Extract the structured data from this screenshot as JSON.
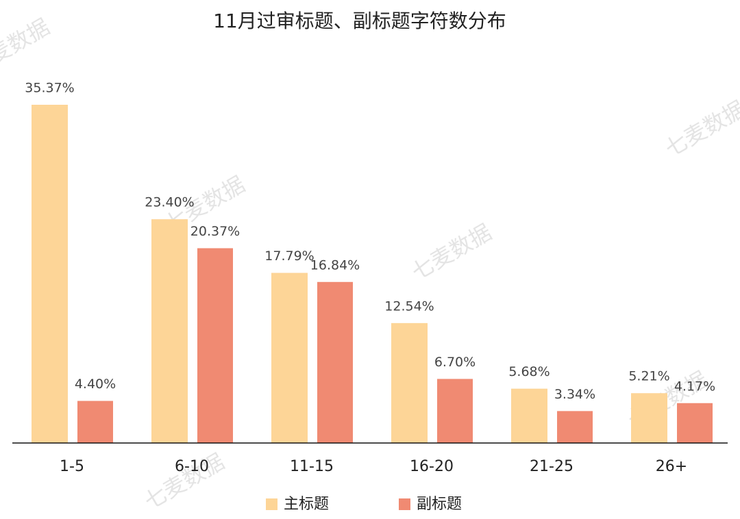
{
  "chart_data": {
    "type": "bar",
    "title": "11月过审标题、副标题字符数分布",
    "categories": [
      "1-5",
      "6-10",
      "11-15",
      "16-20",
      "21-25",
      "26+"
    ],
    "series": [
      {
        "name": "主标题",
        "color": "#fdd597",
        "values": [
          35.37,
          23.4,
          17.79,
          12.54,
          5.68,
          5.21
        ],
        "value_labels": [
          "35.37%",
          "23.40%",
          "17.79%",
          "12.54%",
          "5.68%",
          "5.21%"
        ]
      },
      {
        "name": "副标题",
        "color": "#f08a72",
        "values": [
          4.4,
          20.37,
          16.84,
          6.7,
          3.34,
          4.17
        ],
        "value_labels": [
          "4.40%",
          "20.37%",
          "16.84%",
          "6.70%",
          "3.34%",
          "4.17%"
        ]
      }
    ],
    "watermark": "七麦数据"
  }
}
